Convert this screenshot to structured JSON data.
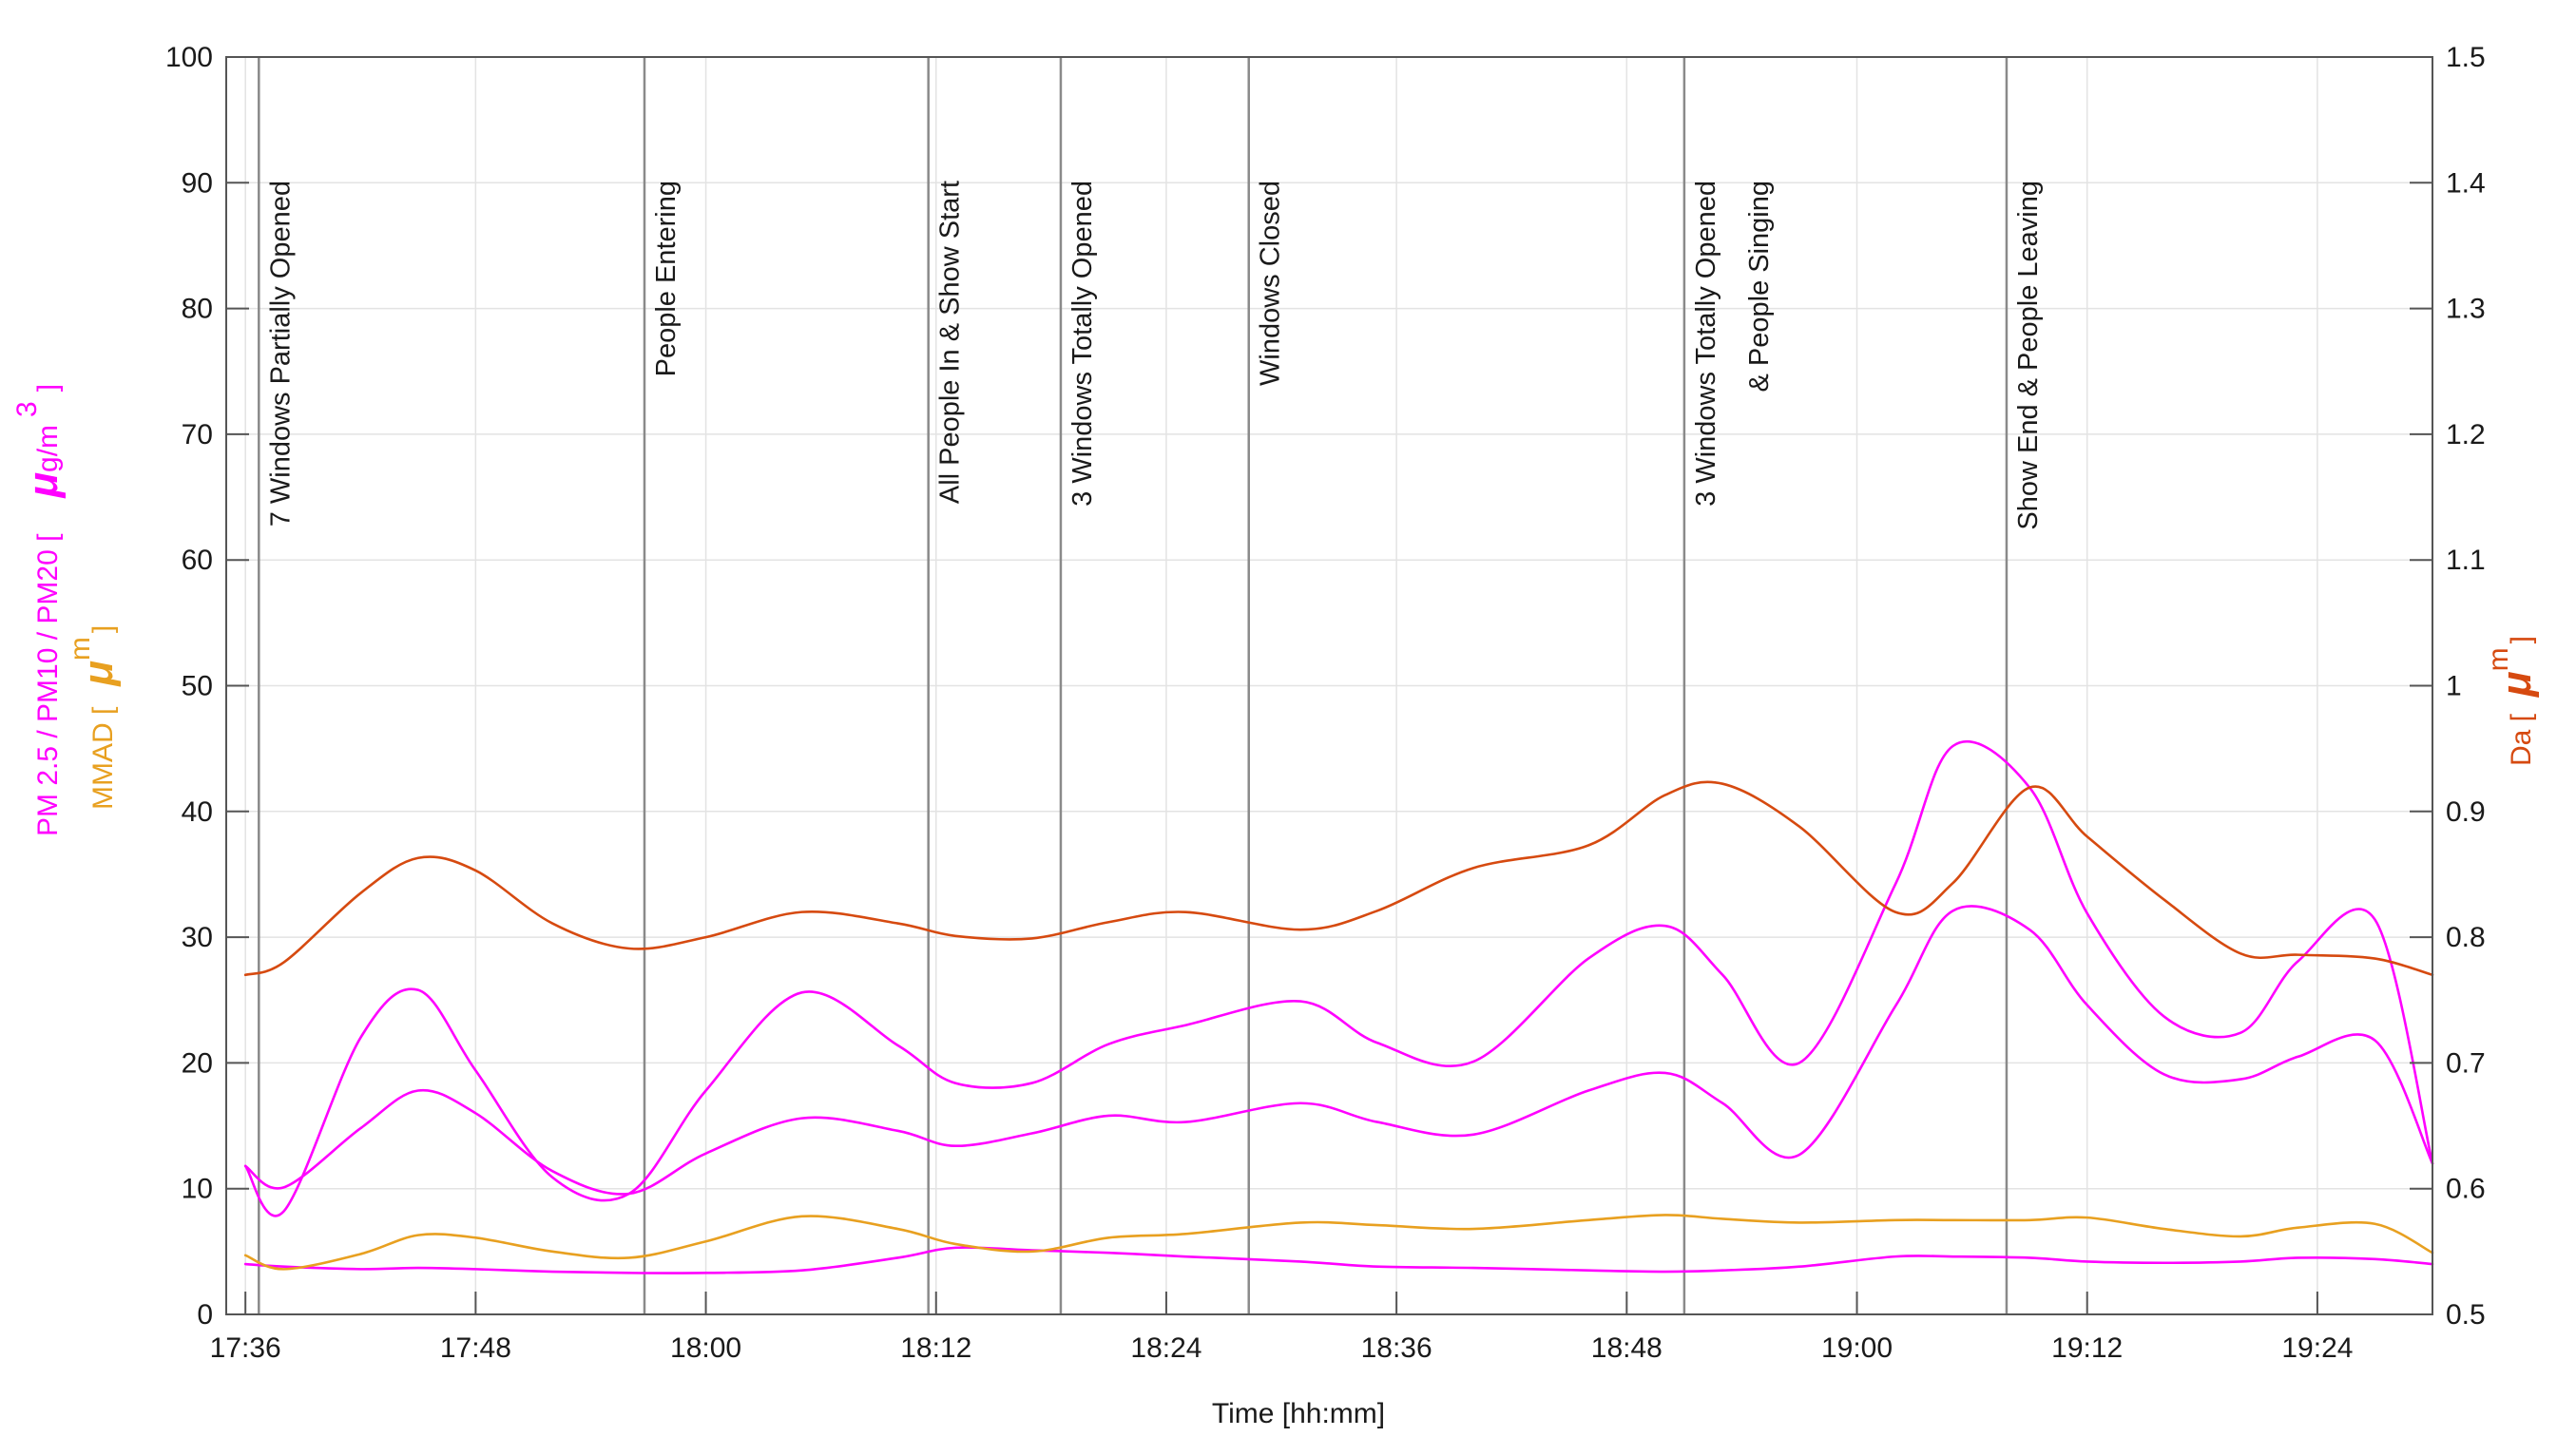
{
  "chart_data": {
    "type": "line",
    "xlabel": "Time [hh:mm]",
    "x_minutes": [
      1056,
      1058,
      1062,
      1065,
      1068,
      1072,
      1076,
      1080,
      1085,
      1090,
      1093,
      1097,
      1101,
      1105,
      1111,
      1115,
      1120,
      1126,
      1130,
      1133,
      1137,
      1142,
      1145,
      1149,
      1152,
      1156,
      1160,
      1163,
      1167,
      1170
    ],
    "xlim_minutes": [
      1055,
      1170
    ],
    "x_ticks": [
      "17:36",
      "17:48",
      "18:00",
      "18:12",
      "18:24",
      "18:36",
      "18:48",
      "19:00",
      "19:12",
      "19:24"
    ],
    "x_tick_minutes": [
      1056,
      1068,
      1080,
      1092,
      1104,
      1116,
      1128,
      1140,
      1152,
      1164
    ],
    "y_left": {
      "ylim": [
        0,
        100
      ],
      "ticks": [
        "0",
        "10",
        "20",
        "30",
        "40",
        "50",
        "60",
        "70",
        "80",
        "90",
        "100"
      ],
      "label_parts": {
        "pm_text": "PM 2.5 / PM10 / PM20 [",
        "pm_mu": "μ",
        "pm_unit": "g/m",
        "pm_exp": "3",
        "pm_close": "]",
        "mmad_text": "MMAD [",
        "mmad_mu": "μ",
        "mmad_unit": "m",
        "mmad_close": "]"
      }
    },
    "y_right": {
      "ylim": [
        0.5,
        1.5
      ],
      "ticks": [
        "0.5",
        "0.6",
        "0.7",
        "0.8",
        "0.9",
        "1",
        "1.1",
        "1.2",
        "1.3",
        "1.4",
        "1.5"
      ],
      "label_parts": {
        "text": "Da [",
        "mu": "μ",
        "unit": "m",
        "close": "]"
      }
    },
    "series": [
      {
        "name": "PM 2.5",
        "axis": "left",
        "color": "#ff00ff",
        "values": [
          4.0,
          3.8,
          3.6,
          3.7,
          3.6,
          3.4,
          3.3,
          3.3,
          3.5,
          4.5,
          5.3,
          5.1,
          4.9,
          4.6,
          4.2,
          3.8,
          3.7,
          3.5,
          3.4,
          3.5,
          3.8,
          4.6,
          4.6,
          4.5,
          4.2,
          4.1,
          4.2,
          4.5,
          4.4,
          4.0
        ]
      },
      {
        "name": "PM10",
        "axis": "left",
        "color": "#ff00ff",
        "values": [
          11.8,
          10.1,
          14.8,
          17.8,
          16.0,
          11.4,
          9.6,
          12.8,
          15.6,
          14.6,
          13.4,
          14.4,
          15.8,
          15.3,
          16.8,
          15.3,
          14.3,
          17.8,
          19.2,
          16.8,
          12.7,
          24.5,
          32.1,
          30.6,
          24.6,
          19.1,
          18.7,
          20.5,
          21.8,
          12.0
        ]
      },
      {
        "name": "PM20",
        "axis": "left",
        "color": "#ff00ff",
        "values": [
          11.8,
          8.2,
          22.0,
          25.8,
          19.4,
          10.9,
          9.6,
          17.8,
          25.6,
          21.4,
          18.4,
          18.4,
          21.5,
          23.0,
          24.9,
          21.6,
          20.1,
          28.3,
          30.9,
          27.0,
          20.0,
          34.2,
          45.2,
          41.9,
          31.9,
          23.7,
          22.4,
          28.1,
          31.4,
          12.0
        ]
      },
      {
        "name": "MMAD",
        "axis": "left",
        "color": "#e8a020",
        "values": [
          4.7,
          3.6,
          4.8,
          6.3,
          6.1,
          5.0,
          4.5,
          5.8,
          7.8,
          6.8,
          5.6,
          5.0,
          6.1,
          6.4,
          7.3,
          7.1,
          6.8,
          7.5,
          7.9,
          7.6,
          7.3,
          7.5,
          7.5,
          7.5,
          7.7,
          6.8,
          6.2,
          6.9,
          7.2,
          4.9
        ]
      },
      {
        "name": "Da",
        "axis": "right",
        "color": "#d64a10",
        "values": [
          0.77,
          0.78,
          0.835,
          0.863,
          0.853,
          0.811,
          0.791,
          0.8,
          0.82,
          0.811,
          0.801,
          0.799,
          0.812,
          0.82,
          0.806,
          0.821,
          0.855,
          0.873,
          0.913,
          0.922,
          0.888,
          0.82,
          0.843,
          0.919,
          0.88,
          0.83,
          0.787,
          0.786,
          0.783,
          0.77
        ]
      }
    ],
    "events": [
      {
        "minute": 1056.7,
        "lines": [
          "7 Windows Partially Opened"
        ]
      },
      {
        "minute": 1076.8,
        "lines": [
          "People Entering"
        ]
      },
      {
        "minute": 1091.6,
        "lines": [
          "All People In & Show Start"
        ]
      },
      {
        "minute": 1098.5,
        "lines": [
          "3 Windows Totally Opened"
        ]
      },
      {
        "minute": 1108.3,
        "lines": [
          "Windows Closed"
        ]
      },
      {
        "minute": 1131.0,
        "lines": [
          "3 Windows Totally Opened",
          "& People Singing"
        ]
      },
      {
        "minute": 1147.8,
        "lines": [
          "Show End & People Leaving"
        ]
      }
    ],
    "grid": true,
    "legend": "none"
  }
}
